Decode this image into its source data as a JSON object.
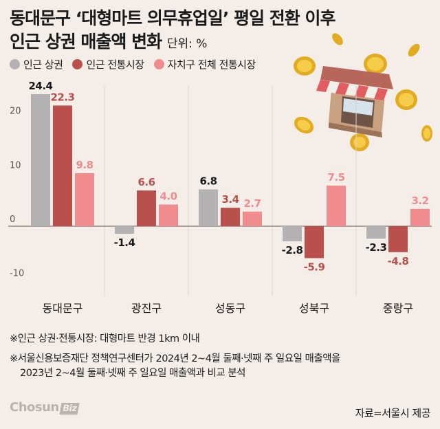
{
  "title_line1": "동대문구 ‘대형마트 의무휴업일’ 평일 전환 이후",
  "title_line2": "인근 상권 매출액 변화",
  "unit": "단위: %",
  "legend": [
    {
      "label": "인근 상권",
      "color": "#b3b1b1"
    },
    {
      "label": "인근 전통시장",
      "color": "#b9504b"
    },
    {
      "label": "자치구 전체 전통시장",
      "color": "#f08c8e"
    }
  ],
  "chart_data": {
    "type": "bar",
    "categories": [
      "동대문구",
      "광진구",
      "성동구",
      "성북구",
      "중랑구"
    ],
    "series": [
      {
        "name": "인근 상권",
        "values": [
          24.4,
          -1.4,
          6.8,
          -2.8,
          -2.3
        ],
        "label_color": "#1a1a1a"
      },
      {
        "name": "인근 전통시장",
        "values": [
          22.3,
          6.6,
          3.4,
          -5.9,
          -4.8
        ],
        "label_color": "#b9504b"
      },
      {
        "name": "자치구 전체 전통시장",
        "values": [
          9.8,
          4.0,
          2.7,
          7.5,
          3.2
        ],
        "label_color": "#f08c8e"
      }
    ],
    "value_labels": [
      [
        "24.4",
        "-1.4",
        "6.8",
        "-2.8",
        "-2.3"
      ],
      [
        "22.3",
        "6.6",
        "3.4",
        "-5.9",
        "-4.8"
      ],
      [
        "9.8",
        "4.0",
        "2.7",
        "7.5",
        "3.2"
      ]
    ],
    "yticks": [
      20,
      10,
      0,
      -10
    ],
    "ytick_labels": [
      "20",
      "10",
      "0",
      "-10"
    ],
    "ylim": [
      -14,
      31
    ],
    "grid": "vertical separators"
  },
  "notes": {
    "note1": "※인근 상권·전통시장: 대형마트 반경 1km 이내",
    "note2_line1": "※서울신용보증재단 정책연구센터가 2024년 2~4월 둘째·넷째 주 일요일 매출액을",
    "note2_line2": "2023년 2~4월 둘째·넷째 주 일요일 매출액과 비교 분석"
  },
  "brand": {
    "main": "Chosun",
    "biz": "Biz"
  },
  "source": "자료=서울시 제공"
}
